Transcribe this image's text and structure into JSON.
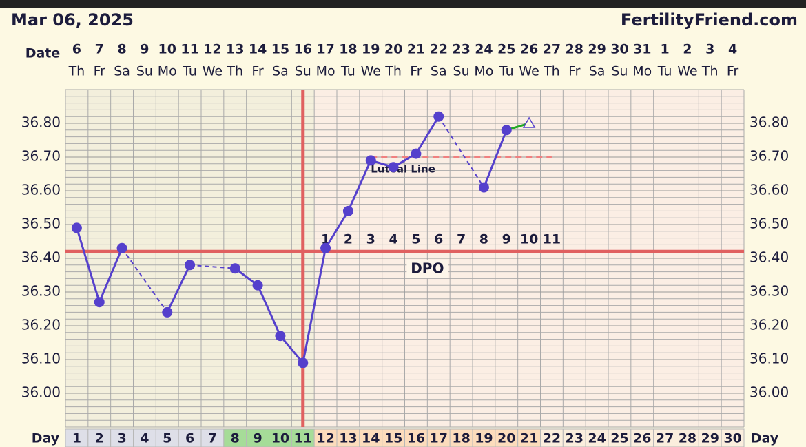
{
  "chart_data": {
    "type": "line",
    "title": "Mar 06, 2025",
    "source": "FertilityFriend.com",
    "date_label": "Date",
    "day_label": "Day",
    "dates": [
      "6",
      "7",
      "8",
      "9",
      "10",
      "11",
      "12",
      "13",
      "14",
      "15",
      "16",
      "17",
      "18",
      "19",
      "20",
      "21",
      "22",
      "23",
      "24",
      "25",
      "26",
      "27",
      "28",
      "29",
      "30",
      "31",
      "1",
      "2",
      "3",
      "4"
    ],
    "weekdays": [
      "Th",
      "Fr",
      "Sa",
      "Su",
      "Mo",
      "Tu",
      "We",
      "Th",
      "Fr",
      "Sa",
      "Su",
      "Mo",
      "Tu",
      "We",
      "Th",
      "Fr",
      "Sa",
      "Su",
      "Mo",
      "Tu",
      "We",
      "Th",
      "Fr",
      "Sa",
      "Su",
      "Mo",
      "Tu",
      "We",
      "Th",
      "Fr"
    ],
    "categories": [
      1,
      2,
      3,
      4,
      5,
      6,
      7,
      8,
      9,
      10,
      11,
      12,
      13,
      14,
      15,
      16,
      17,
      18,
      19,
      20,
      21,
      22,
      23,
      24,
      25,
      26,
      27,
      28,
      29,
      30
    ],
    "values": [
      36.49,
      36.27,
      36.43,
      null,
      36.24,
      36.38,
      null,
      36.37,
      36.32,
      36.17,
      36.09,
      36.43,
      36.54,
      36.69,
      36.67,
      36.71,
      36.82,
      null,
      36.61,
      36.78,
      null,
      null,
      null,
      null,
      null,
      null,
      null,
      null,
      null,
      null
    ],
    "color": "#5540cc",
    "projected_values": [
      null,
      null,
      null,
      null,
      null,
      null,
      null,
      null,
      null,
      null,
      null,
      null,
      null,
      null,
      null,
      null,
      null,
      null,
      null,
      36.78,
      36.8,
      null,
      null,
      null,
      null,
      null,
      null,
      null,
      null,
      null
    ],
    "projected_color": "#22aa22",
    "ylim": [
      35.9,
      36.9
    ],
    "yticks": [
      {
        "value": 36.0,
        "label": "36.00"
      },
      {
        "value": 36.1,
        "label": "36.10"
      },
      {
        "value": 36.2,
        "label": "36.20"
      },
      {
        "value": 36.3,
        "label": "36.30"
      },
      {
        "value": 36.4,
        "label": "36.40"
      },
      {
        "value": 36.5,
        "label": "36.50"
      },
      {
        "value": 36.6,
        "label": "36.60"
      },
      {
        "value": 36.7,
        "label": "36.70"
      },
      {
        "value": 36.8,
        "label": "36.80"
      }
    ],
    "grid": true,
    "coverline": {
      "value": 36.42,
      "color": "#e06060"
    },
    "ovulation_day": 11,
    "fertile_days": [
      8,
      9,
      10,
      11
    ],
    "luteal_line": {
      "label": "Luteal Line",
      "value": 36.7,
      "days": [
        14,
        22
      ],
      "color": "#f08080"
    },
    "dpo": {
      "label": "DPO",
      "values": [
        1,
        2,
        3,
        4,
        5,
        6,
        7,
        8,
        9,
        10,
        11
      ]
    }
  }
}
